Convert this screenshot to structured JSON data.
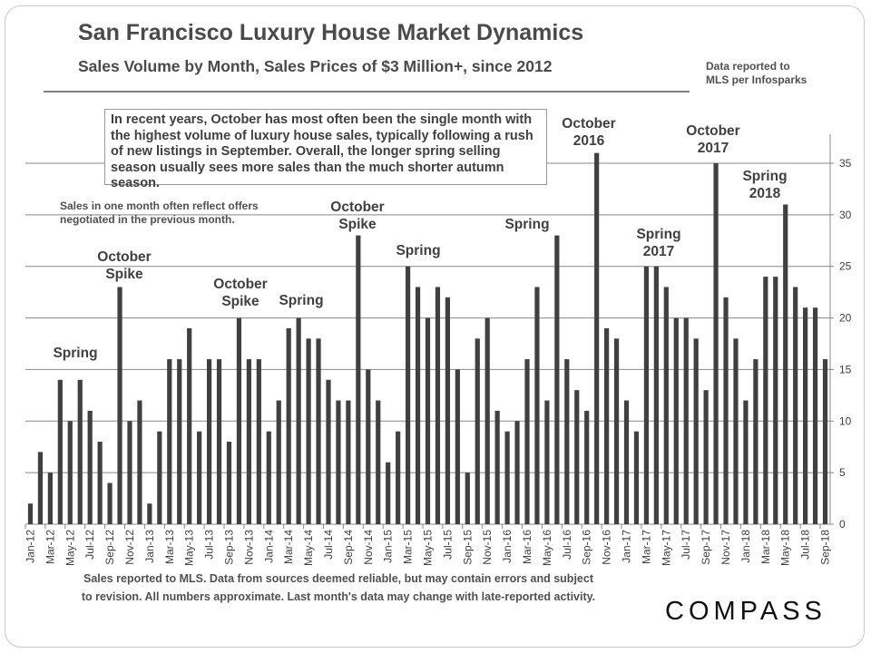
{
  "header": {
    "title": "San Francisco Luxury House Market Dynamics",
    "subtitle": "Sales Volume by Month, Sales Prices of $3 Million+,  since 2012",
    "source_line1": "Data reported to",
    "source_line2": "MLS per Infosparks"
  },
  "callout": "In recent years, October has most often been the single month with the highest volume of luxury house sales, typically following a rush of new listings in September. Overall, the longer spring selling season usually sees more sales than the much shorter autumn season.",
  "note": {
    "line1": "Sales in one month often reflect offers",
    "line2": "negotiated in the previous month."
  },
  "annotations": [
    {
      "line1": "Spring",
      "line2": ""
    },
    {
      "line1": "October",
      "line2": "Spike"
    },
    {
      "line1": "October",
      "line2": "Spike"
    },
    {
      "line1": "Spring",
      "line2": ""
    },
    {
      "line1": "October",
      "line2": "Spike"
    },
    {
      "line1": "Spring",
      "line2": ""
    },
    {
      "line1": "Spring",
      "line2": ""
    },
    {
      "line1": "October",
      "line2": "2016"
    },
    {
      "line1": "Spring",
      "line2": "2017"
    },
    {
      "line1": "October",
      "line2": "2017"
    },
    {
      "line1": "Spring",
      "line2": "2018"
    }
  ],
  "footer": {
    "line1": "Sales reported to MLS. Data from sources  deemed reliable, but may contain errors and subject",
    "line2": "to revision. All numbers approximate. Last month's data may change with late-reported activity."
  },
  "logo": "COMPASS",
  "colors": {
    "bar": "#404040",
    "grid": "#888888",
    "text": "#404040"
  },
  "chart_data": {
    "type": "bar",
    "title": "Sales Volume by Month, Sales Prices of $3 Million+",
    "ylim": [
      0,
      35
    ],
    "yticks": [
      0,
      5,
      10,
      15,
      20,
      25,
      30,
      35
    ],
    "y_axis_position": "right",
    "grid": true,
    "categories": [
      "Jan-12",
      "Feb-12",
      "Mar-12",
      "Apr-12",
      "May-12",
      "Jun-12",
      "Jul-12",
      "Aug-12",
      "Sep-12",
      "Oct-12",
      "Nov-12",
      "Dec-12",
      "Jan-13",
      "Feb-13",
      "Mar-13",
      "Apr-13",
      "May-13",
      "Jun-13",
      "Jul-13",
      "Aug-13",
      "Sep-13",
      "Oct-13",
      "Nov-13",
      "Dec-13",
      "Jan-14",
      "Feb-14",
      "Mar-14",
      "Apr-14",
      "May-14",
      "Jun-14",
      "Jul-14",
      "Aug-14",
      "Sep-14",
      "Oct-14",
      "Nov-14",
      "Dec-14",
      "Jan-15",
      "Feb-15",
      "Mar-15",
      "Apr-15",
      "May-15",
      "Jun-15",
      "Jul-15",
      "Aug-15",
      "Sep-15",
      "Oct-15",
      "Nov-15",
      "Dec-15",
      "Jan-16",
      "Feb-16",
      "Mar-16",
      "Apr-16",
      "May-16",
      "Jun-16",
      "Jul-16",
      "Aug-16",
      "Sep-16",
      "Oct-16",
      "Nov-16",
      "Dec-16",
      "Jan-17",
      "Feb-17",
      "Mar-17",
      "Apr-17",
      "May-17",
      "Jun-17",
      "Jul-17",
      "Aug-17",
      "Sep-17",
      "Oct-17",
      "Nov-17",
      "Dec-17",
      "Jan-18",
      "Feb-18",
      "Mar-18",
      "Apr-18",
      "May-18",
      "Jun-18",
      "Jul-18",
      "Aug-18",
      "Sep-18"
    ],
    "values": [
      2,
      7,
      5,
      14,
      10,
      14,
      11,
      8,
      4,
      23,
      10,
      12,
      2,
      9,
      16,
      16,
      19,
      9,
      16,
      16,
      8,
      20,
      16,
      16,
      9,
      12,
      19,
      20,
      18,
      18,
      14,
      12,
      12,
      28,
      15,
      12,
      6,
      9,
      25,
      23,
      20,
      23,
      22,
      15,
      5,
      18,
      20,
      11,
      9,
      10,
      16,
      23,
      12,
      28,
      16,
      13,
      11,
      36,
      19,
      18,
      12,
      9,
      25,
      25,
      23,
      20,
      20,
      18,
      13,
      35,
      22,
      18,
      12,
      16,
      24,
      24,
      31,
      23,
      21,
      21,
      16
    ]
  }
}
